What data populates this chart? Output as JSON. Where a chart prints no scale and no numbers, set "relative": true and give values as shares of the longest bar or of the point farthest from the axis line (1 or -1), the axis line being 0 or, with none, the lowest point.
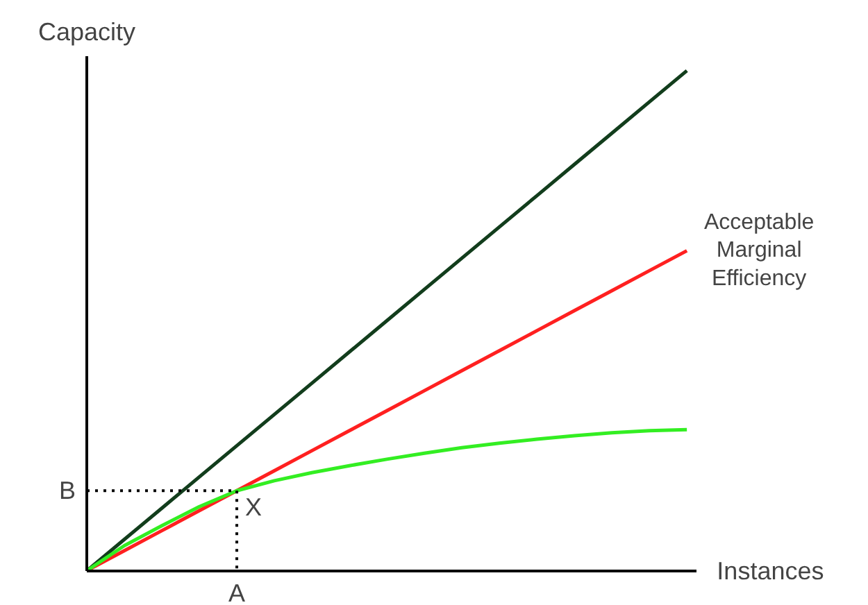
{
  "chart_data": {
    "type": "line",
    "relative": true,
    "xlabel": "Instances",
    "ylabel": "Capacity",
    "categories": [
      null,
      null,
      null,
      null,
      null,
      null,
      null,
      null,
      null,
      null,
      null,
      null,
      null,
      null,
      null,
      null,
      null
    ],
    "series": [
      {
        "color": "#123d1c",
        "values": [
          0,
          0.0625,
          0.125,
          0.1875,
          0.25,
          0.3125,
          0.375,
          0.4375,
          0.5,
          0.5625,
          0.625,
          0.6875,
          0.75,
          0.8125,
          0.875,
          0.9375,
          1.0
        ]
      },
      {
        "name": "Acceptable Marginal Efficiency",
        "color": "#ff2020",
        "values": [
          0,
          0.04,
          0.08,
          0.12,
          0.16,
          0.2,
          0.24,
          0.28,
          0.32,
          0.36,
          0.4,
          0.44,
          0.48,
          0.52,
          0.56,
          0.6,
          0.64
        ]
      },
      {
        "color": "#33ee22",
        "values": [
          0,
          0.05,
          0.09,
          0.128,
          0.16,
          0.18,
          0.196,
          0.21,
          0.223,
          0.235,
          0.246,
          0.255,
          0.263,
          0.27,
          0.276,
          0.28,
          0.282
        ]
      },
      {
        "color": "#000000",
        "line_style": "dotted",
        "values": [
          0.16,
          0.16,
          0.16,
          0.16,
          0.16,
          null,
          null,
          null,
          null,
          null,
          null,
          null,
          null,
          null,
          null,
          null,
          null
        ]
      }
    ],
    "annotations": [
      "A",
      "B",
      "X"
    ]
  }
}
